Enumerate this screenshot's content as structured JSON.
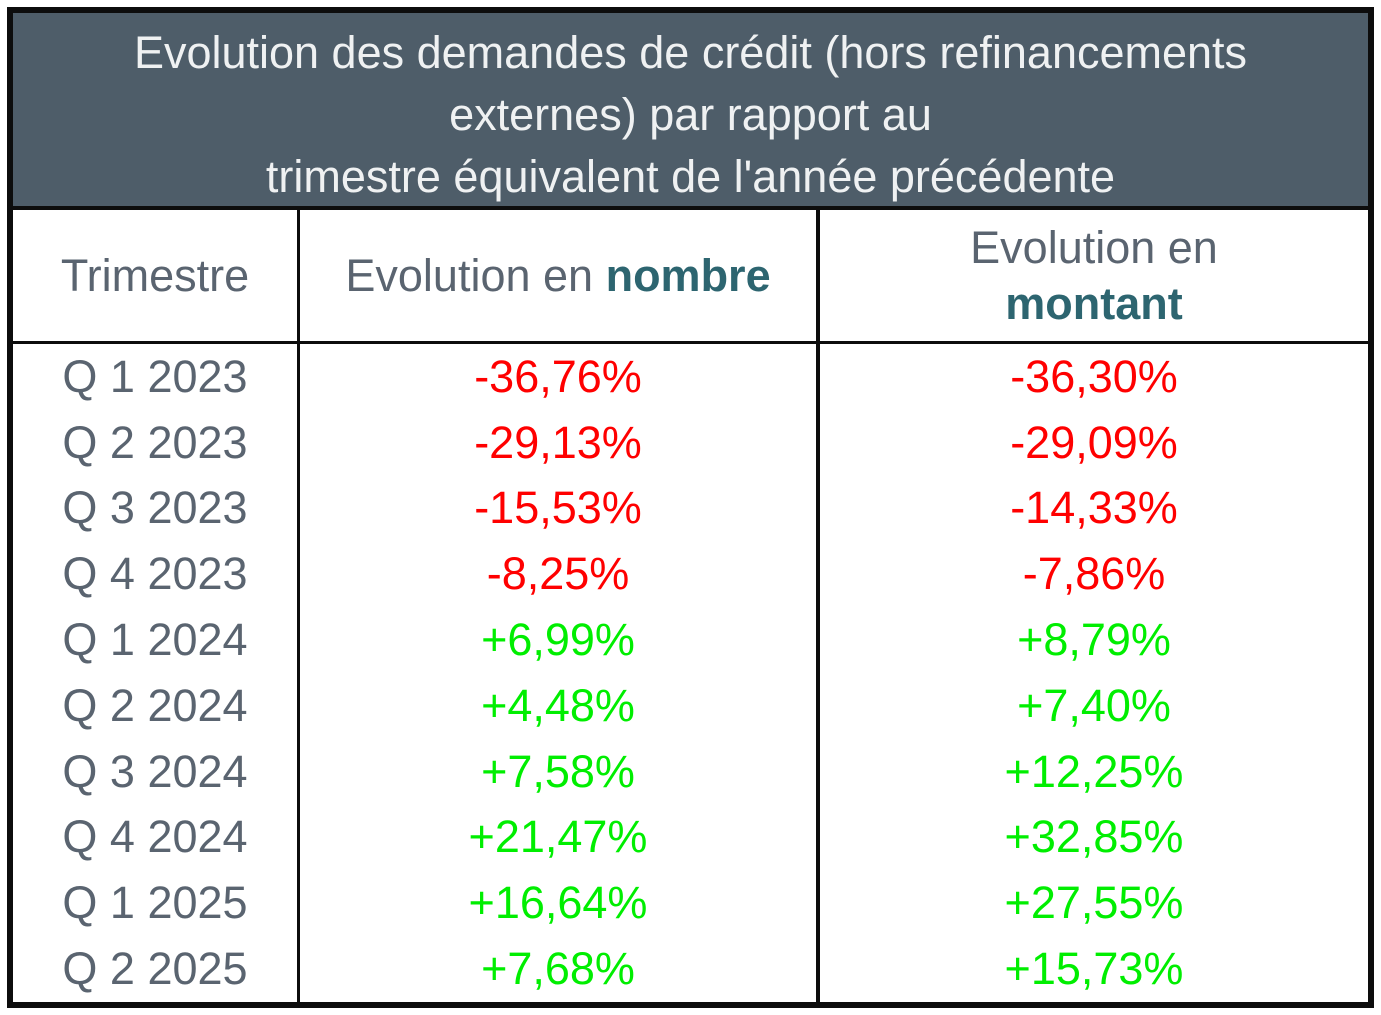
{
  "colors": {
    "title_background": "#4e5d69",
    "title_text": "#eff1f2",
    "gray_text": "#5a6470",
    "accent_teal": "#2d6570",
    "negative": "#ff0000",
    "positive": "#00ee00",
    "border": "#0d0d0d"
  },
  "title": {
    "lines": [
      "Evolution des demandes de crédit (hors refinancements",
      "externes) par rapport au",
      "trimestre équivalent de l'année précédente"
    ]
  },
  "header": {
    "trimestre": "Trimestre",
    "evolution_prefix_nombre": "Evolution en ",
    "nombre_bold": "nombre",
    "evolution_prefix_montant": "Evolution en",
    "montant_bold": "montant"
  },
  "chart_data": {
    "type": "table",
    "title": "Evolution des demandes de crédit (hors refinancements externes) par rapport au trimestre équivalent de l'année précédente",
    "columns": [
      "Trimestre",
      "Evolution en nombre",
      "Evolution en montant"
    ],
    "rows": [
      [
        "Q 1 2023",
        "-36,76%",
        "-36,30%"
      ],
      [
        "Q 2 2023",
        "-29,13%",
        "-29,09%"
      ],
      [
        "Q 3 2023",
        "-15,53%",
        "-14,33%"
      ],
      [
        "Q 4 2023",
        "-8,25%",
        "-7,86%"
      ],
      [
        "Q 1 2024",
        "+6,99%",
        "+8,79%"
      ],
      [
        "Q 2 2024",
        "+4,48%",
        "+7,40%"
      ],
      [
        "Q 3 2024",
        "+7,58%",
        "+12,25%"
      ],
      [
        "Q 4 2024",
        "+21,47%",
        "+32,85%"
      ],
      [
        "Q 1 2025",
        "+16,64%",
        "+27,55%"
      ],
      [
        "Q 2 2025",
        "+7,68%",
        "+15,73%"
      ]
    ],
    "series": [
      {
        "name": "Evolution en nombre",
        "values": [
          -36.76,
          -29.13,
          -15.53,
          -8.25,
          6.99,
          4.48,
          7.58,
          21.47,
          16.64,
          7.68
        ]
      },
      {
        "name": "Evolution en montant",
        "values": [
          -36.3,
          -29.09,
          -14.33,
          -7.86,
          8.79,
          7.4,
          12.25,
          32.85,
          27.55,
          15.73
        ]
      }
    ],
    "categories": [
      "Q 1 2023",
      "Q 2 2023",
      "Q 3 2023",
      "Q 4 2023",
      "Q 1 2024",
      "Q 2 2024",
      "Q 3 2024",
      "Q 4 2024",
      "Q 1 2025",
      "Q 2 2025"
    ],
    "value_unit": "%"
  }
}
